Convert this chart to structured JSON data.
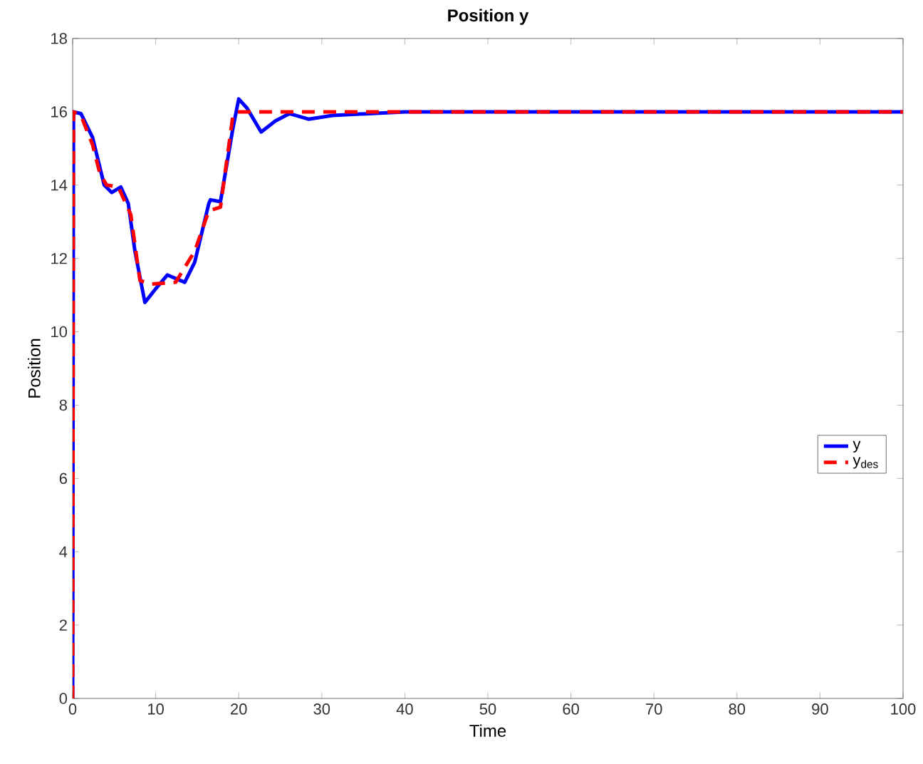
{
  "chart_data": {
    "type": "line",
    "title": "Position y",
    "xlabel": "Time",
    "ylabel": "Position",
    "xlim": [
      0,
      100
    ],
    "ylim": [
      0,
      18
    ],
    "xticks": [
      0,
      10,
      20,
      30,
      40,
      50,
      60,
      70,
      80,
      90,
      100
    ],
    "yticks": [
      0,
      2,
      4,
      6,
      8,
      10,
      12,
      14,
      16,
      18
    ],
    "grid": false,
    "legend": "right",
    "marker": "none",
    "series": [
      {
        "name": "y",
        "color": "#0000ff",
        "line_style": "solid",
        "x": [
          0,
          0.1,
          1,
          2.4,
          3.8,
          4.7,
          5.8,
          6.7,
          7.5,
          8.7,
          10.1,
          11.4,
          13.5,
          14.7,
          16.4,
          16.6,
          17.8,
          19.3,
          20,
          21,
          22.7,
          24.4,
          26.1,
          28.4,
          31.3,
          40,
          100
        ],
        "values": [
          0,
          16,
          15.95,
          15.3,
          14,
          13.8,
          13.95,
          13.5,
          12.2,
          10.8,
          11.2,
          11.55,
          11.35,
          11.9,
          13.5,
          13.6,
          13.55,
          15.55,
          16.35,
          16.1,
          15.45,
          15.75,
          15.95,
          15.8,
          15.9,
          16,
          16
        ]
      },
      {
        "name": "y$_{des}$",
        "color": "#ff0000",
        "line_style": "dashed",
        "x": [
          0,
          0.1,
          1,
          2.4,
          3.3,
          4.1,
          5.5,
          7,
          8.1,
          9.5,
          12.4,
          14.7,
          16.4,
          17.8,
          19.3,
          19.8,
          100
        ],
        "values": [
          0,
          16,
          15.9,
          15.1,
          14.3,
          14,
          13.95,
          13.2,
          11.4,
          11.3,
          11.35,
          12.2,
          13.3,
          13.4,
          15.9,
          16,
          16
        ]
      }
    ]
  }
}
